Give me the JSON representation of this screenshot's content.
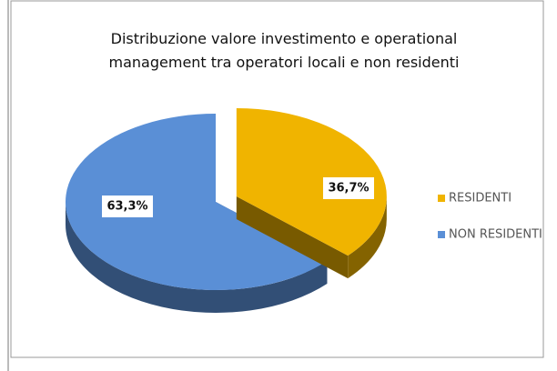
{
  "chart_data": {
    "type": "pie",
    "title": "Distribuzione valore investimento e operational management tra operatori locali e non residenti",
    "categories": [
      "RESIDENTI",
      "NON RESIDENTI"
    ],
    "values": [
      36.7,
      63.3
    ],
    "value_labels": [
      "36,7%",
      "63,3%"
    ],
    "colors": [
      "#f0b400",
      "#5a8fd6"
    ]
  }
}
